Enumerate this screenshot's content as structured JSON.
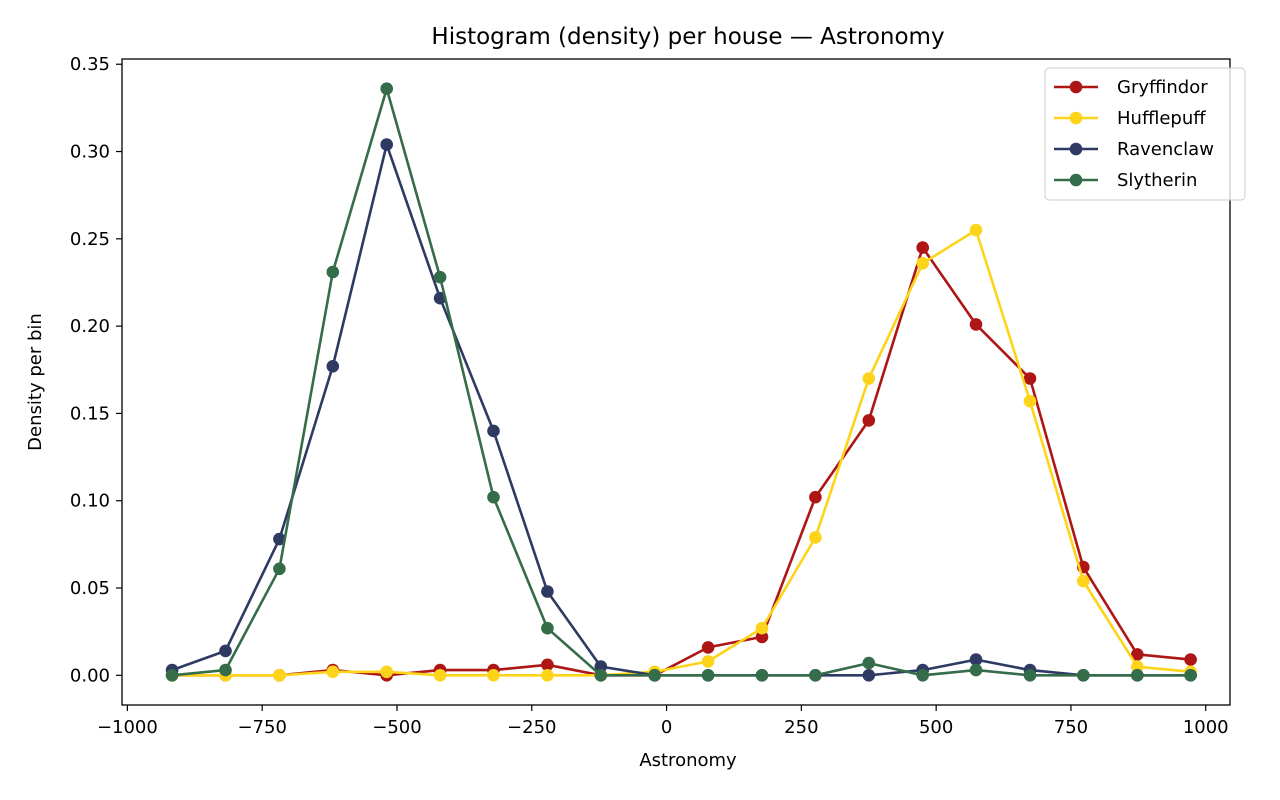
{
  "chart_data": {
    "type": "line",
    "title": "Histogram (density) per house — Astronomy",
    "xlabel": "Astronomy",
    "ylabel": "Density per bin",
    "xlim": [
      -1010,
      1045
    ],
    "ylim": [
      -0.017,
      0.353
    ],
    "xticks": [
      -1000,
      -750,
      -500,
      -250,
      0,
      250,
      500,
      750,
      1000
    ],
    "xtick_labels": [
      "−1000",
      "−750",
      "−500",
      "−250",
      "0",
      "250",
      "500",
      "750",
      "1000"
    ],
    "yticks": [
      0.0,
      0.05,
      0.1,
      0.15,
      0.2,
      0.25,
      0.3,
      0.35
    ],
    "ytick_labels": [
      "0.00",
      "0.05",
      "0.10",
      "0.15",
      "0.20",
      "0.25",
      "0.30",
      "0.35"
    ],
    "grid": false,
    "legend_position": "top-right",
    "x": [
      -917,
      -818,
      -718,
      -619,
      -519,
      -420,
      -321,
      -221,
      -122,
      -22,
      77,
      177,
      276,
      375,
      475,
      574,
      674,
      773,
      873,
      972
    ],
    "series": [
      {
        "name": "Gryffindor",
        "color": "#ae1616",
        "values": [
          0.0,
          0.0,
          0.0,
          0.003,
          0.0,
          0.003,
          0.003,
          0.006,
          0.0,
          0.0,
          0.016,
          0.022,
          0.102,
          0.146,
          0.245,
          0.201,
          0.17,
          0.062,
          0.012,
          0.009
        ]
      },
      {
        "name": "Hufflepuff",
        "color": "#fdd419",
        "values": [
          0.0,
          0.0,
          0.0,
          0.002,
          0.002,
          0.0,
          0.0,
          0.0,
          0.0,
          0.002,
          0.008,
          0.027,
          0.079,
          0.17,
          0.236,
          0.255,
          0.157,
          0.054,
          0.005,
          0.002
        ]
      },
      {
        "name": "Ravenclaw",
        "color": "#2f3a63",
        "values": [
          0.003,
          0.014,
          0.078,
          0.177,
          0.304,
          0.216,
          0.14,
          0.048,
          0.005,
          0.0,
          0.0,
          0.0,
          0.0,
          0.0,
          0.003,
          0.009,
          0.003,
          0.0,
          0.0,
          0.0
        ]
      },
      {
        "name": "Slytherin",
        "color": "#356c49",
        "values": [
          0.0,
          0.003,
          0.061,
          0.231,
          0.336,
          0.228,
          0.102,
          0.027,
          0.0,
          0.0,
          0.0,
          0.0,
          0.0,
          0.007,
          0.0,
          0.003,
          0.0,
          0.0,
          0.0,
          0.0
        ]
      }
    ]
  }
}
